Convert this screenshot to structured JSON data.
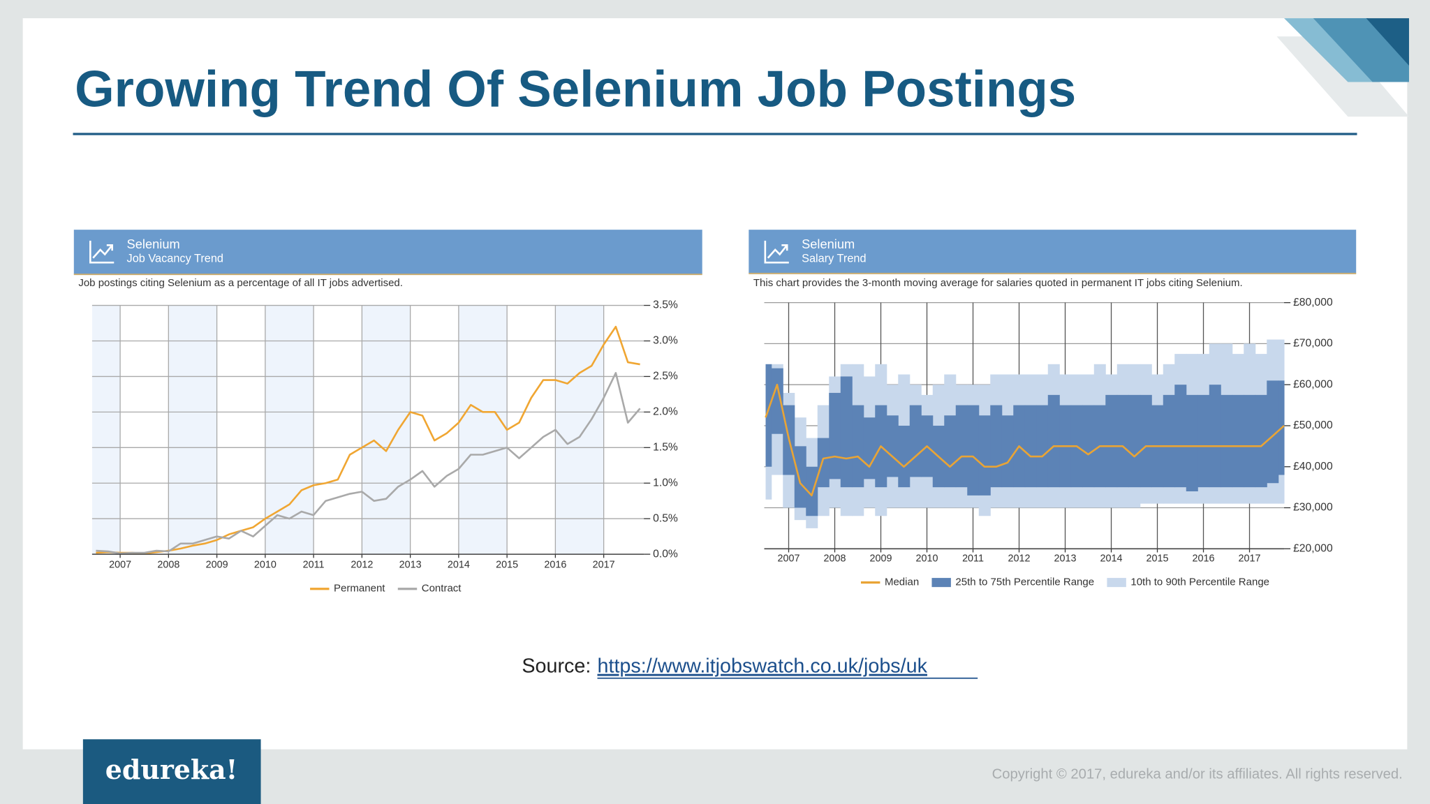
{
  "slide": {
    "title": "Growing Trend Of Selenium Job Postings",
    "source_label": "Source:",
    "source_url": "https://www.itjobswatch.co.uk/jobs/uk",
    "logo": "edureka!",
    "copyright": "Copyright © 2017, edureka and/or its affiliates. All rights reserved."
  },
  "chart_data": [
    {
      "type": "line",
      "title": "Selenium",
      "subtitle": "Job Vacancy Trend",
      "description": "Job postings citing Selenium as a percentage of all IT jobs advertised.",
      "x": [
        2006.5,
        2006.75,
        2007,
        2007.25,
        2007.5,
        2007.75,
        2008,
        2008.25,
        2008.5,
        2008.75,
        2009,
        2009.25,
        2009.5,
        2009.75,
        2010,
        2010.25,
        2010.5,
        2010.75,
        2011,
        2011.25,
        2011.5,
        2011.75,
        2012,
        2012.25,
        2012.5,
        2012.75,
        2013,
        2013.25,
        2013.5,
        2013.75,
        2014,
        2014.25,
        2014.5,
        2014.75,
        2015,
        2015.25,
        2015.5,
        2015.75,
        2016,
        2016.25,
        2016.5,
        2016.75,
        2017,
        2017.25,
        2017.5,
        2017.75
      ],
      "series": [
        {
          "name": "Permanent",
          "color": "#f0a632",
          "values": [
            0.02,
            0.03,
            0.02,
            0.02,
            0.01,
            0.03,
            0.05,
            0.08,
            0.12,
            0.15,
            0.2,
            0.28,
            0.33,
            0.38,
            0.5,
            0.6,
            0.7,
            0.9,
            0.97,
            1.0,
            1.05,
            1.4,
            1.5,
            1.6,
            1.45,
            1.75,
            2.0,
            1.95,
            1.6,
            1.7,
            1.85,
            2.1,
            2.0,
            2.0,
            1.75,
            1.85,
            2.2,
            2.45,
            2.45,
            2.4,
            2.55,
            2.65,
            2.95,
            3.2,
            2.7,
            2.67
          ]
        },
        {
          "name": "Contract",
          "color": "#a9a9a9",
          "values": [
            0.05,
            0.04,
            0.01,
            0.02,
            0.02,
            0.05,
            0.04,
            0.15,
            0.15,
            0.2,
            0.25,
            0.22,
            0.33,
            0.25,
            0.4,
            0.55,
            0.5,
            0.6,
            0.55,
            0.75,
            0.8,
            0.85,
            0.88,
            0.75,
            0.78,
            0.95,
            1.05,
            1.17,
            0.95,
            1.1,
            1.2,
            1.4,
            1.4,
            1.45,
            1.5,
            1.35,
            1.5,
            1.65,
            1.75,
            1.55,
            1.65,
            1.9,
            2.2,
            2.55,
            1.85,
            2.05
          ]
        }
      ],
      "xlim": [
        2006.42,
        2017.83
      ],
      "xticks": [
        2007,
        2008,
        2009,
        2010,
        2011,
        2012,
        2013,
        2014,
        2015,
        2016,
        2017
      ],
      "ylim": [
        0,
        3.5
      ],
      "yticks": [
        {
          "value": 0,
          "label": "0.0%"
        },
        {
          "value": 0.5,
          "label": "0.5%"
        },
        {
          "value": 1,
          "label": "1.0%"
        },
        {
          "value": 1.5,
          "label": "1.5%"
        },
        {
          "value": 2,
          "label": "2.0%"
        },
        {
          "value": 2.5,
          "label": "2.5%"
        },
        {
          "value": 3,
          "label": "3.0%"
        },
        {
          "value": 3.5,
          "label": "3.5%"
        }
      ],
      "grid": true,
      "shaded_years": true,
      "legend": "bottom"
    },
    {
      "type": "line",
      "title": "Selenium",
      "subtitle": "Salary Trend",
      "description": "This chart provides the 3-month moving average for salaries quoted in permanent IT jobs citing Selenium.",
      "x": [
        2006.5,
        2006.75,
        2007,
        2007.25,
        2007.5,
        2007.75,
        2008,
        2008.25,
        2008.5,
        2008.75,
        2009,
        2009.25,
        2009.5,
        2009.75,
        2010,
        2010.25,
        2010.5,
        2010.75,
        2011,
        2011.25,
        2011.5,
        2011.75,
        2012,
        2012.25,
        2012.5,
        2012.75,
        2013,
        2013.25,
        2013.5,
        2013.75,
        2014,
        2014.25,
        2014.5,
        2014.75,
        2015,
        2015.25,
        2015.5,
        2015.75,
        2016,
        2016.25,
        2016.5,
        2016.75,
        2017,
        2017.25,
        2017.5,
        2017.75
      ],
      "series": [
        {
          "name": "Median",
          "color": "#e9a435",
          "values": [
            52000,
            60000,
            47000,
            36000,
            33000,
            42000,
            42500,
            42000,
            42500,
            40000,
            45000,
            42500,
            40000,
            42500,
            45000,
            42500,
            40000,
            42500,
            42500,
            40000,
            40000,
            41000,
            45000,
            42500,
            42500,
            45000,
            45000,
            45000,
            43000,
            45000,
            45000,
            45000,
            42500,
            45000,
            45000,
            45000,
            45000,
            45000,
            45000,
            45000,
            45000,
            45000,
            45000,
            45000,
            47500,
            50000
          ]
        },
        {
          "name": "25th to 75th Percentile Range",
          "color": "#5c83b6",
          "low": [
            40000,
            48000,
            38000,
            30000,
            28000,
            35000,
            37000,
            35000,
            35000,
            37000,
            35000,
            37500,
            35000,
            37500,
            37500,
            35000,
            35000,
            35000,
            33000,
            33000,
            35000,
            35000,
            35000,
            35000,
            35000,
            35000,
            35000,
            35000,
            35000,
            35000,
            35000,
            35000,
            35000,
            35000,
            35000,
            35000,
            35000,
            34000,
            35000,
            35000,
            35000,
            35000,
            35000,
            35000,
            36000,
            38000
          ],
          "high": [
            65000,
            64000,
            55000,
            45000,
            40000,
            47000,
            58000,
            62000,
            55000,
            52000,
            55000,
            52500,
            50000,
            55000,
            52500,
            50000,
            52500,
            55000,
            55000,
            52500,
            55000,
            52500,
            55000,
            55000,
            55000,
            57500,
            55000,
            55000,
            55000,
            55000,
            57500,
            57500,
            57500,
            57500,
            55000,
            57500,
            60000,
            57500,
            57500,
            60000,
            57500,
            57500,
            57500,
            57500,
            61000,
            61000
          ]
        },
        {
          "name": "10th to 90th Percentile Range",
          "color": "#c8d8ec",
          "low": [
            32000,
            38000,
            30000,
            27000,
            25000,
            28000,
            30000,
            28000,
            28000,
            30000,
            28000,
            30000,
            30000,
            30000,
            30000,
            30000,
            30000,
            30000,
            30000,
            28000,
            30000,
            30000,
            30000,
            30000,
            30000,
            30000,
            30000,
            30000,
            30000,
            30000,
            30000,
            30000,
            30000,
            31000,
            31000,
            31000,
            31000,
            31000,
            31000,
            31000,
            31000,
            31000,
            31000,
            31000,
            31000,
            31000
          ],
          "high": [
            60000,
            65000,
            58000,
            52000,
            47000,
            55000,
            62000,
            65000,
            65000,
            62000,
            65000,
            60000,
            62500,
            60000,
            57500,
            60000,
            62500,
            60000,
            60000,
            60000,
            62500,
            62500,
            62500,
            62500,
            62500,
            65000,
            62500,
            62500,
            62500,
            65000,
            62500,
            65000,
            65000,
            65000,
            62500,
            65000,
            67500,
            67500,
            67500,
            70000,
            70000,
            67500,
            70000,
            67500,
            71000,
            71000
          ]
        }
      ],
      "xlim": [
        2006.47,
        2017.75
      ],
      "xticks": [
        2007,
        2008,
        2009,
        2010,
        2011,
        2012,
        2013,
        2014,
        2015,
        2016,
        2017
      ],
      "ylim": [
        20000,
        80000
      ],
      "yticks": [
        {
          "value": 20000,
          "label": "£20,000"
        },
        {
          "value": 30000,
          "label": "£30,000"
        },
        {
          "value": 40000,
          "label": "£40,000"
        },
        {
          "value": 50000,
          "label": "£50,000"
        },
        {
          "value": 60000,
          "label": "£60,000"
        },
        {
          "value": 70000,
          "label": "£70,000"
        },
        {
          "value": 80000,
          "label": "£80,000"
        }
      ],
      "grid": true,
      "shaded_years": false,
      "legend": "bottom"
    }
  ]
}
